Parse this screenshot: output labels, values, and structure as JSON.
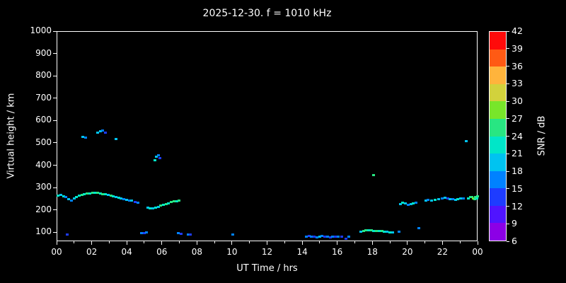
{
  "title": "2025-12-30. f = 1010 kHz",
  "xlabel": "UT Time / hrs",
  "ylabel": "Virtual height / km",
  "colorbar": {
    "label": "SNR / dB",
    "min": 6,
    "max": 42,
    "tick_values": [
      6,
      9,
      12,
      15,
      18,
      21,
      24,
      27,
      30,
      33,
      36,
      39,
      42
    ],
    "tick_labels": [
      "6",
      "9",
      "12",
      "15",
      "18",
      "21",
      "24",
      "27",
      "30",
      "33",
      "36",
      "39",
      "42"
    ],
    "segment_colors": [
      "#8c00e6",
      "#5014ff",
      "#1e3cff",
      "#0082ff",
      "#00c3f0",
      "#00e6c8",
      "#28e682",
      "#78e62a",
      "#d2d23c",
      "#ffb43c",
      "#ff5a14",
      "#ff0a0a"
    ]
  },
  "chart_data": {
    "type": "scatter",
    "title": "2025-12-30. f = 1010 kHz",
    "xlabel": "UT Time / hrs",
    "ylabel": "Virtual height / km",
    "xlim": [
      0,
      24
    ],
    "ylim": [
      60,
      1000
    ],
    "x_major_tick_values": [
      0,
      2,
      4,
      6,
      8,
      10,
      12,
      14,
      16,
      18,
      20,
      22,
      24
    ],
    "x_tick_labels": [
      "00",
      "02",
      "04",
      "06",
      "08",
      "10",
      "12",
      "14",
      "16",
      "18",
      "20",
      "22",
      "00"
    ],
    "x_minor_tick_values": [
      1,
      3,
      5,
      7,
      9,
      11,
      13,
      15,
      17,
      19,
      21,
      23
    ],
    "y_tick_values": [
      100,
      200,
      300,
      400,
      500,
      600,
      700,
      800,
      900,
      1000
    ],
    "y_tick_labels": [
      "100",
      "200",
      "300",
      "400",
      "500",
      "600",
      "700",
      "800",
      "900",
      "1000"
    ],
    "background": "#000000",
    "grid": false,
    "legend": "colorbar-right",
    "point_meaning": [
      "ut_time_hrs",
      "virtual_height_km",
      "snr_db"
    ],
    "points": [
      [
        0.05,
        268,
        21
      ],
      [
        0.2,
        271,
        18
      ],
      [
        0.35,
        266,
        21
      ],
      [
        0.5,
        262,
        15
      ],
      [
        0.65,
        252,
        18
      ],
      [
        0.8,
        248,
        15
      ],
      [
        0.95,
        256,
        18
      ],
      [
        1.1,
        263,
        21
      ],
      [
        1.25,
        268,
        21
      ],
      [
        1.4,
        272,
        24
      ],
      [
        1.55,
        275,
        21
      ],
      [
        1.7,
        277,
        24
      ],
      [
        1.85,
        279,
        21
      ],
      [
        2.0,
        281,
        24
      ],
      [
        2.15,
        282,
        21
      ],
      [
        2.3,
        280,
        24
      ],
      [
        2.45,
        278,
        21
      ],
      [
        2.6,
        276,
        24
      ],
      [
        2.75,
        274,
        21
      ],
      [
        2.9,
        272,
        18
      ],
      [
        3.05,
        270,
        24
      ],
      [
        3.2,
        267,
        21
      ],
      [
        3.35,
        263,
        18
      ],
      [
        3.5,
        259,
        21
      ],
      [
        3.65,
        256,
        18
      ],
      [
        3.8,
        253,
        15
      ],
      [
        3.95,
        251,
        18
      ],
      [
        4.1,
        248,
        15
      ],
      [
        4.25,
        246,
        18
      ],
      [
        4.45,
        241,
        12
      ],
      [
        4.6,
        238,
        15
      ],
      [
        5.15,
        214,
        18
      ],
      [
        5.3,
        211,
        21
      ],
      [
        5.45,
        213,
        18
      ],
      [
        5.6,
        216,
        21
      ],
      [
        5.75,
        219,
        18
      ],
      [
        5.9,
        223,
        24
      ],
      [
        6.05,
        227,
        21
      ],
      [
        6.2,
        231,
        24
      ],
      [
        6.35,
        235,
        21
      ],
      [
        6.5,
        239,
        24
      ],
      [
        6.65,
        242,
        24
      ],
      [
        6.8,
        245,
        21
      ],
      [
        6.95,
        247,
        24
      ],
      [
        1.45,
        532,
        18
      ],
      [
        1.6,
        527,
        15
      ],
      [
        2.3,
        552,
        18
      ],
      [
        2.45,
        558,
        18
      ],
      [
        2.6,
        561,
        15
      ],
      [
        2.75,
        549,
        12
      ],
      [
        3.35,
        522,
        18
      ],
      [
        5.55,
        428,
        21
      ],
      [
        5.65,
        443,
        18
      ],
      [
        5.75,
        450,
        15
      ],
      [
        5.85,
        437,
        12
      ],
      [
        18.05,
        362,
        24
      ],
      [
        23.3,
        512,
        18
      ],
      [
        0.55,
        96,
        12
      ],
      [
        4.8,
        102,
        15
      ],
      [
        4.95,
        100,
        12
      ],
      [
        5.1,
        103,
        15
      ],
      [
        6.9,
        100,
        15
      ],
      [
        7.05,
        97,
        12
      ],
      [
        7.45,
        95,
        15
      ],
      [
        7.6,
        94,
        12
      ],
      [
        10.0,
        96,
        15
      ],
      [
        14.2,
        86,
        15
      ],
      [
        14.35,
        88,
        12
      ],
      [
        14.5,
        84,
        15
      ],
      [
        14.65,
        86,
        12
      ],
      [
        14.8,
        83,
        15
      ],
      [
        14.95,
        85,
        18
      ],
      [
        15.1,
        87,
        15
      ],
      [
        15.25,
        84,
        12
      ],
      [
        15.4,
        86,
        15
      ],
      [
        15.55,
        83,
        12
      ],
      [
        15.7,
        85,
        15
      ],
      [
        15.85,
        84,
        12
      ],
      [
        16.0,
        86,
        15
      ],
      [
        16.2,
        85,
        12
      ],
      [
        16.45,
        76,
        12
      ],
      [
        16.6,
        84,
        15
      ],
      [
        17.3,
        106,
        18
      ],
      [
        17.45,
        110,
        24
      ],
      [
        17.6,
        113,
        24
      ],
      [
        17.75,
        115,
        21
      ],
      [
        17.9,
        114,
        24
      ],
      [
        18.05,
        112,
        21
      ],
      [
        18.2,
        110,
        24
      ],
      [
        18.35,
        112,
        21
      ],
      [
        18.5,
        111,
        24
      ],
      [
        18.65,
        109,
        21
      ],
      [
        18.8,
        107,
        18
      ],
      [
        18.95,
        105,
        21
      ],
      [
        19.1,
        104,
        18
      ],
      [
        19.5,
        107,
        15
      ],
      [
        20.6,
        122,
        15
      ],
      [
        19.55,
        232,
        18
      ],
      [
        19.7,
        236,
        21
      ],
      [
        19.85,
        233,
        18
      ],
      [
        20.0,
        229,
        15
      ],
      [
        20.15,
        231,
        18
      ],
      [
        20.3,
        234,
        21
      ],
      [
        20.45,
        237,
        15
      ],
      [
        21.0,
        246,
        18
      ],
      [
        21.15,
        250,
        15
      ],
      [
        21.35,
        248,
        18
      ],
      [
        21.55,
        251,
        21
      ],
      [
        21.75,
        254,
        18
      ],
      [
        21.95,
        256,
        15
      ],
      [
        22.1,
        258,
        18
      ],
      [
        22.25,
        256,
        12
      ],
      [
        22.4,
        254,
        18
      ],
      [
        22.55,
        252,
        15
      ],
      [
        22.7,
        251,
        18
      ],
      [
        22.85,
        253,
        21
      ],
      [
        23.0,
        255,
        18
      ],
      [
        23.15,
        257,
        15
      ],
      [
        23.45,
        256,
        21
      ],
      [
        23.55,
        261,
        24
      ],
      [
        23.65,
        263,
        24
      ],
      [
        23.7,
        257,
        27
      ],
      [
        23.78,
        252,
        24
      ],
      [
        23.85,
        262,
        24
      ],
      [
        23.92,
        256,
        21
      ],
      [
        23.97,
        266,
        24
      ]
    ]
  }
}
